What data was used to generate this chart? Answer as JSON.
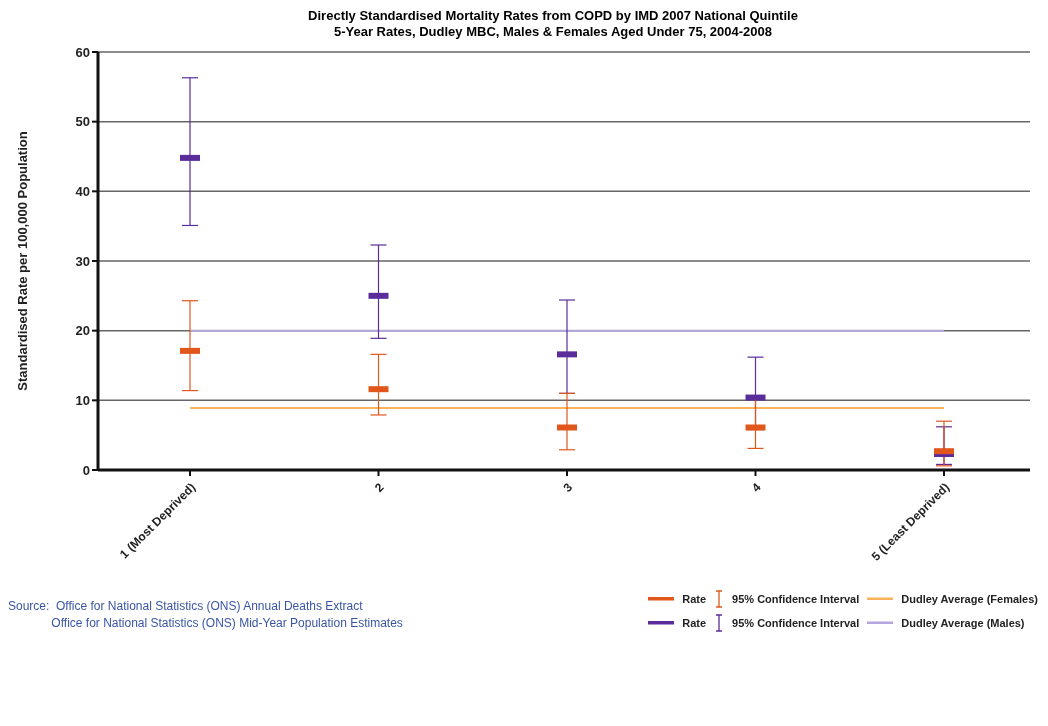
{
  "chart_data": {
    "type": "scatter",
    "title": "Directly Standardised Mortality Rates from COPD by IMD 2007 National Quintile",
    "subtitle": "5-Year Rates, Dudley MBC, Males & Females Aged Under 75, 2004-2008",
    "ylabel": "Standardised Rate per 100,000 Population",
    "categories": [
      "1 (Most Deprived)",
      "2",
      "3",
      "4",
      "5 (Least Deprived)"
    ],
    "series": [
      {
        "name": "Rate",
        "color": "#e0561b",
        "values": [
          17.1,
          11.6,
          6.1,
          6.1,
          2.7
        ],
        "errors": [
          [
            11.4,
            24.3
          ],
          [
            7.9,
            16.6
          ],
          [
            2.9,
            11.0
          ],
          [
            3.1,
            10.2
          ],
          [
            0.6,
            7.0
          ]
        ]
      },
      {
        "name": "Rate",
        "color": "#5b2d9a",
        "values": [
          44.8,
          25.0,
          16.6,
          10.4,
          2.3
        ],
        "errors": [
          [
            35.1,
            56.3
          ],
          [
            18.9,
            32.3
          ],
          [
            11.0,
            24.4
          ],
          [
            5.8,
            16.2
          ],
          [
            0.8,
            6.2
          ]
        ]
      },
      {
        "name": "Dudley Average (Females)",
        "type": "line",
        "color": "#fbb35a",
        "values": [
          8.9,
          8.9,
          8.9,
          8.9,
          8.9
        ]
      },
      {
        "name": "Dudley Average (Males)",
        "type": "line",
        "color": "#b3a6dc",
        "values": [
          20.0,
          20.0,
          20.0,
          20.0,
          20.0
        ]
      }
    ],
    "ylim": [
      0,
      60
    ],
    "yticks": [
      0,
      10,
      20,
      30,
      40,
      50,
      60
    ],
    "grid": "y",
    "legend": "bottom right",
    "annotations": [
      "Source:  Office for National Statistics (ONS) Annual Deaths Extract\n             Office for National Statistics (ONS) Mid-Year Population Estimates",
      "95% Confidence Interval",
      "95% Confidence Interval"
    ]
  }
}
